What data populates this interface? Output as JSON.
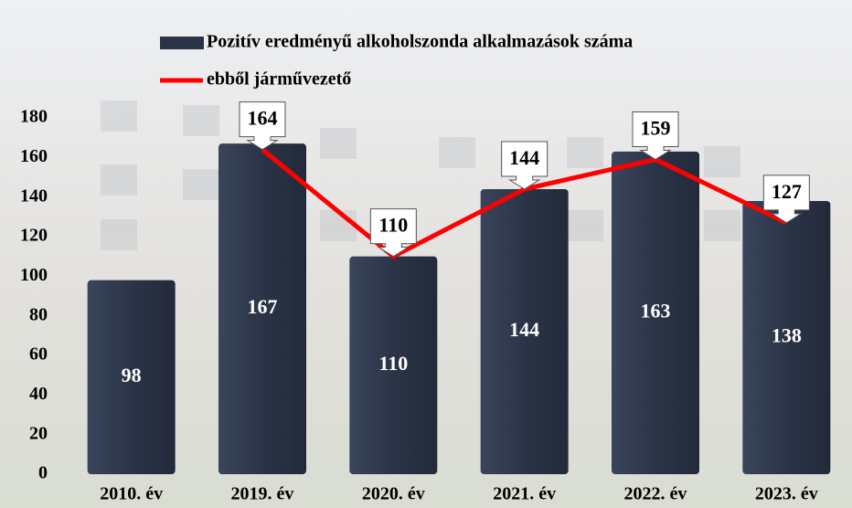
{
  "chart_data": {
    "type": "bar-line",
    "categories": [
      "2010. év",
      "2019. év",
      "2020. év",
      "2021. év",
      "2022. év",
      "2023. év"
    ],
    "series": [
      {
        "name": "Pozitív eredményű alkoholszonda alkalmazások száma",
        "type": "bar",
        "color": "#2b3447",
        "values": [
          98,
          167,
          110,
          144,
          163,
          138
        ]
      },
      {
        "name": "ebből járművezető",
        "type": "line",
        "color": "#ff0000",
        "values": [
          null,
          164,
          110,
          144,
          159,
          127
        ]
      }
    ],
    "ylim": [
      0,
      180
    ],
    "yticks": [
      0,
      20,
      40,
      60,
      80,
      100,
      120,
      140,
      160,
      180
    ],
    "grid": false
  }
}
